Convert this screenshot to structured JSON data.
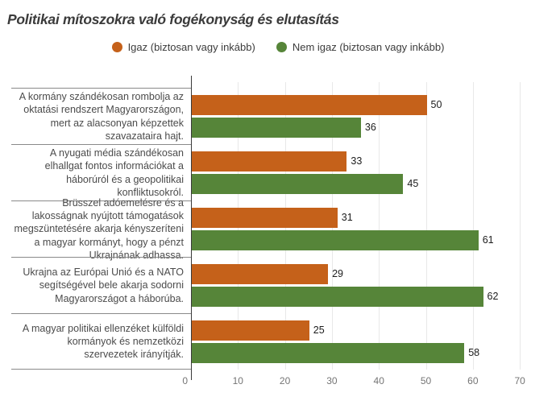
{
  "title": "Politikai mítoszokra való fogékonyság és elutasítás",
  "legend": [
    {
      "label": "Igaz (biztosan vagy inkább)",
      "color": "#c5611a"
    },
    {
      "label": "Nem igaz (biztosan vagy inkább)",
      "color": "#568539"
    }
  ],
  "chart_data": {
    "type": "bar",
    "orientation": "horizontal",
    "title": "Politikai mítoszokra való fogékonyság és elutasítás",
    "categories": [
      "A kormány szándékosan rombolja az oktatási rendszert Magyarországon, mert az alacsonyan képzettek szavazataira hajt.",
      "A nyugati média szándékosan elhallgat fontos információkat a háborúról és a geopolitikai konfliktusokról.",
      "Brüsszel adóemelésre és a lakosságnak nyújtott támogatások megszüntetésére akarja kényszeríteni a magyar kormányt, hogy a pénzt Ukrajnának adhassa.",
      "Ukrajna az Európai Unió és a NATO segítségével bele akarja sodorni Magyarországot a háborúba.",
      "A magyar politikai ellenzéket külföldi kormányok és nemzetközi szervezetek irányítják."
    ],
    "series": [
      {
        "name": "Igaz (biztosan vagy inkább)",
        "color": "#c5611a",
        "values": [
          50,
          33,
          31,
          29,
          25
        ]
      },
      {
        "name": "Nem igaz (biztosan vagy inkább)",
        "color": "#568539",
        "values": [
          36,
          45,
          61,
          62,
          58
        ]
      }
    ],
    "xlim": [
      0,
      70
    ],
    "x_ticks": [
      0,
      10,
      20,
      30,
      40,
      50,
      60,
      70
    ],
    "grid": true,
    "legend_position": "top",
    "value_labels": true
  }
}
